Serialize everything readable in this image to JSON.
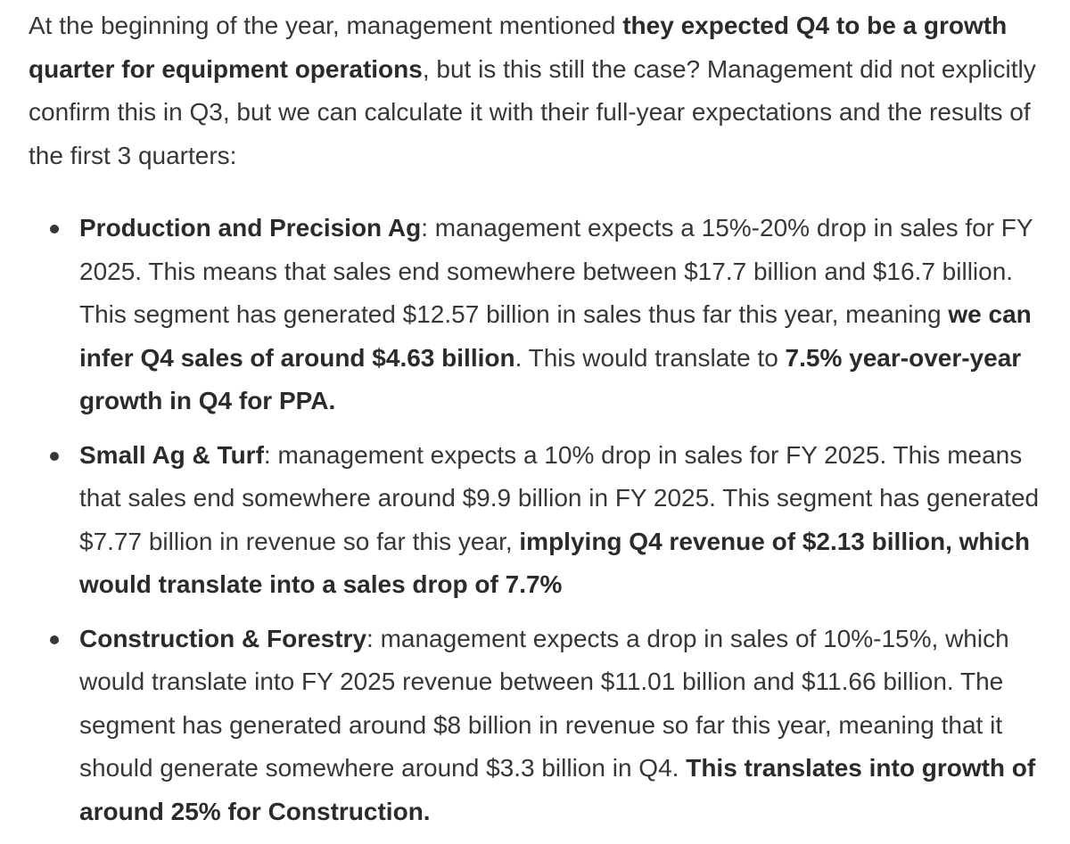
{
  "intro": {
    "part1": "At the beginning of the year, management mentioned ",
    "bold1": "they expected Q4 to be a growth quarter for equipment operations",
    "part2": ", but is this still the case? Management did not explicitly confirm this in Q3, but we can calculate it with their full-year expectations and the results of the first 3 quarters:"
  },
  "segments": [
    {
      "title": "Production and Precision Ag",
      "text1": ": management expects a 15%-20% drop in sales for FY 2025. This means that sales end somewhere between $17.7 billion and $16.7 billion. This segment has generated $12.57 billion in sales thus far this year, meaning ",
      "bold1": "we can infer Q4 sales of around $4.63 billion",
      "text2": ". This would translate to ",
      "bold2": "7.5% year-over-year growth in Q4 for PPA."
    },
    {
      "title": "Small Ag & Turf",
      "text1": ": management expects a 10% drop in sales for FY 2025. This means that sales end somewhere around $9.9 billion in FY 2025. This segment has generated $7.77 billion in revenue so far this year, ",
      "bold1": "implying Q4 revenue of $2.13 billion, which would translate into a sales drop of 7.7%"
    },
    {
      "title": "Construction & Forestry",
      "text1": ": management expects a drop in sales of 10%-15%, which would translate into FY 2025 revenue between $11.01 billion and $11.66 billion. The segment has generated around $8 billion in revenue so far this year, meaning that it should generate somewhere around $3.3 billion in Q4. ",
      "bold1": "This translates into growth of around 25% for Construction."
    }
  ]
}
